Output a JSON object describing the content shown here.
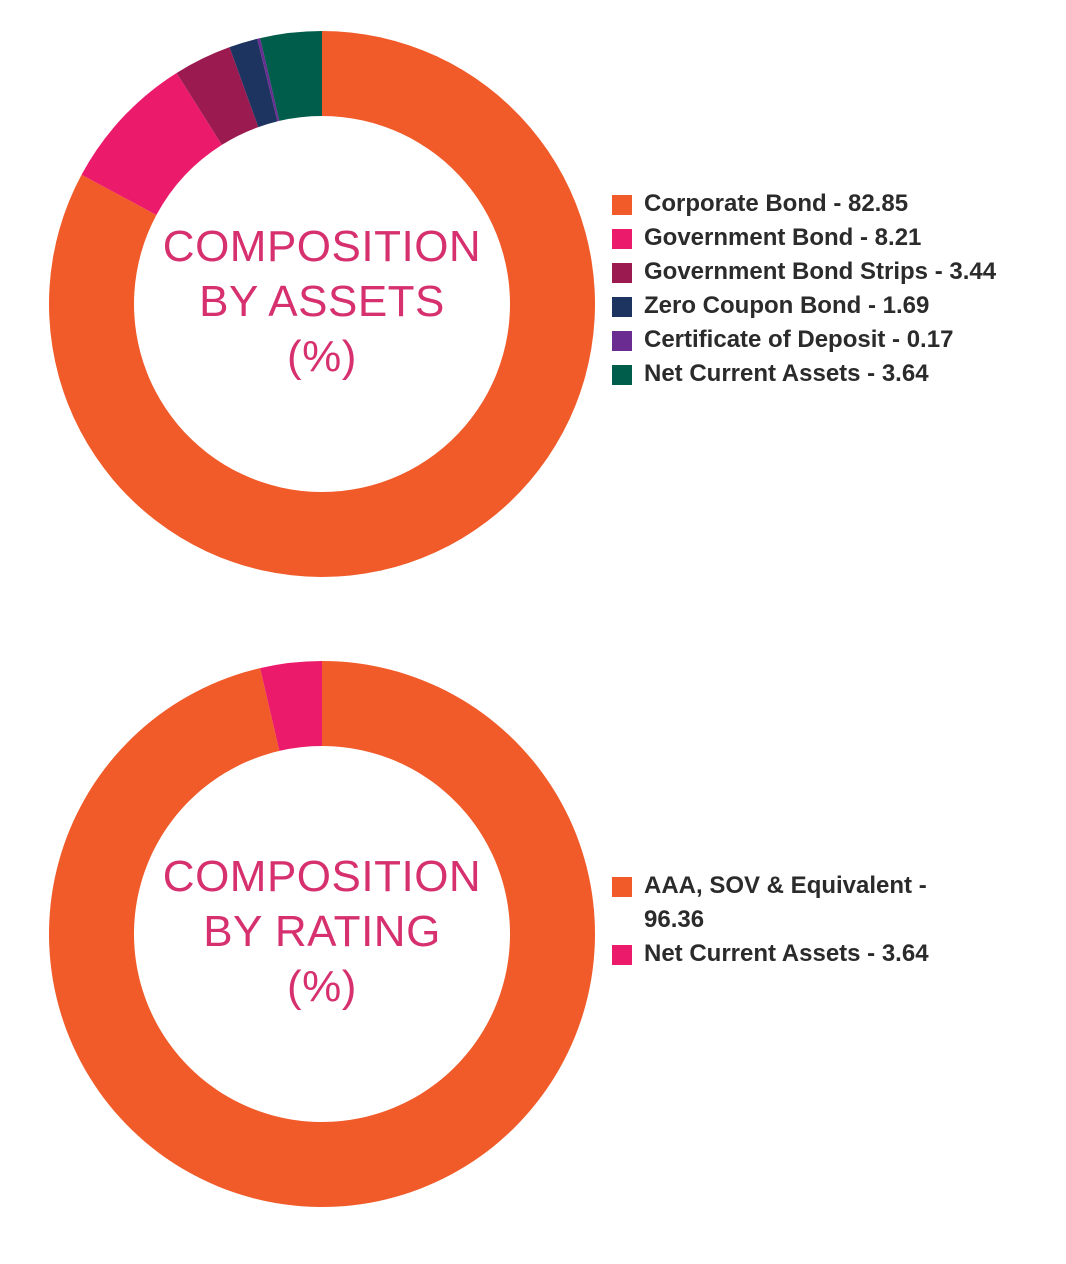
{
  "chart_data": [
    {
      "type": "pie",
      "title": "",
      "center_label": [
        "COMPOSITION",
        "BY ASSETS",
        "(%)"
      ],
      "legend_position": "right",
      "slices": [
        {
          "label": "Corporate Bond - 82.85",
          "value": 82.85,
          "color": "#f15a29"
        },
        {
          "label": "Government Bond - 8.21",
          "value": 8.21,
          "color": "#ec1a6b"
        },
        {
          "label": "Government Bond Strips - 3.44",
          "value": 3.44,
          "color": "#9b1b50"
        },
        {
          "label": "Zero Coupon Bond - 1.69",
          "value": 1.69,
          "color": "#1d3461"
        },
        {
          "label": "Certificate of Deposit - 0.17",
          "value": 0.17,
          "color": "#6b2c91"
        },
        {
          "label": "Net Current Assets - 3.64",
          "value": 3.64,
          "color": "#005c4b"
        }
      ]
    },
    {
      "type": "pie",
      "title": "",
      "center_label": [
        "COMPOSITION",
        "BY RATING",
        "(%)"
      ],
      "legend_position": "right",
      "slices": [
        {
          "label": "AAA, SOV & Equivalent - 96.36",
          "value": 96.36,
          "color": "#f15a29"
        },
        {
          "label": "Net Current Assets - 3.64",
          "value": 3.64,
          "color": "#ec1a6b"
        }
      ]
    }
  ]
}
